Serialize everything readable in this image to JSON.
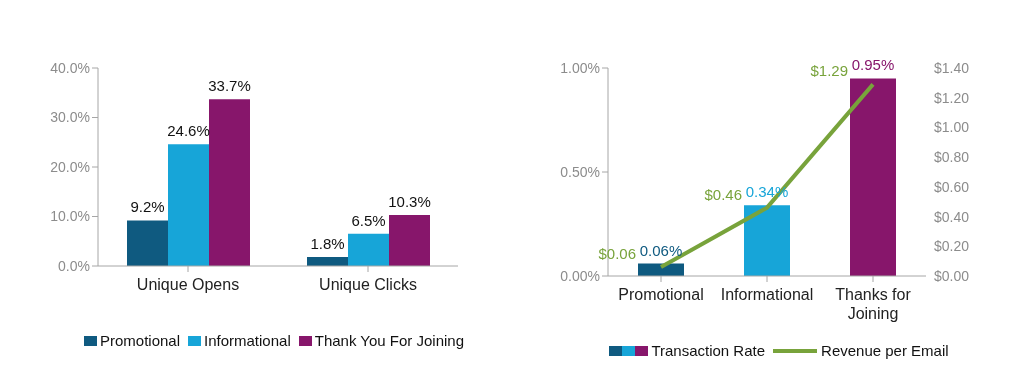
{
  "chart_data": [
    {
      "type": "bar",
      "categories": [
        "Unique Opens",
        "Unique Clicks"
      ],
      "series": [
        {
          "name": "Promotional",
          "color": "#0f5a80",
          "values": [
            9.2,
            1.8
          ],
          "value_labels": [
            "9.2%",
            "1.8%"
          ]
        },
        {
          "name": "Informational",
          "color": "#17a5d8",
          "values": [
            24.6,
            6.5
          ],
          "value_labels": [
            "24.6%",
            "6.5%"
          ]
        },
        {
          "name": "Thank You For Joining",
          "color": "#87166b",
          "values": [
            33.7,
            10.3
          ],
          "value_labels": [
            "33.7%",
            "10.3%"
          ]
        }
      ],
      "ylim": [
        0,
        40
      ],
      "yticks": [
        {
          "value": 0,
          "label": "0.0%"
        },
        {
          "value": 10,
          "label": "10.0%"
        },
        {
          "value": 20,
          "label": "20.0%"
        },
        {
          "value": 30,
          "label": "30.0%"
        },
        {
          "value": 40,
          "label": "40.0%"
        }
      ],
      "grid": false,
      "legend": "bottom"
    },
    {
      "type": "bar",
      "categories": [
        "Promotional",
        "Informational",
        "Thanks for Joining"
      ],
      "series": [
        {
          "name": "Transaction Rate",
          "colors": [
            "#0f5a80",
            "#17a5d8",
            "#87166b"
          ],
          "values": [
            0.06,
            0.34,
            0.95
          ],
          "value_labels": [
            "0.06%",
            "0.34%",
            "0.95%"
          ]
        },
        {
          "name": "Revenue per Email",
          "type": "line",
          "axis": "y2",
          "color": "#78a33b",
          "values": [
            0.06,
            0.46,
            1.29
          ],
          "value_labels": [
            "$0.06",
            "$0.46",
            "$1.29"
          ]
        }
      ],
      "ylim": [
        0,
        1
      ],
      "yticks": [
        {
          "value": 0,
          "label": "0.00%"
        },
        {
          "value": 0.5,
          "label": "0.50%"
        },
        {
          "value": 1,
          "label": "1.00%"
        }
      ],
      "y2lim": [
        0,
        1.4
      ],
      "y2ticks": [
        {
          "value": 0,
          "label": "$0.00"
        },
        {
          "value": 0.2,
          "label": "$0.20"
        },
        {
          "value": 0.4,
          "label": "$0.40"
        },
        {
          "value": 0.6,
          "label": "$0.60"
        },
        {
          "value": 0.8,
          "label": "$0.80"
        },
        {
          "value": 1,
          "label": "$1.00"
        },
        {
          "value": 1.2,
          "label": "$1.20"
        },
        {
          "value": 1.4,
          "label": "$1.40"
        }
      ],
      "grid": false,
      "legend": "bottom",
      "marker": "none"
    }
  ]
}
